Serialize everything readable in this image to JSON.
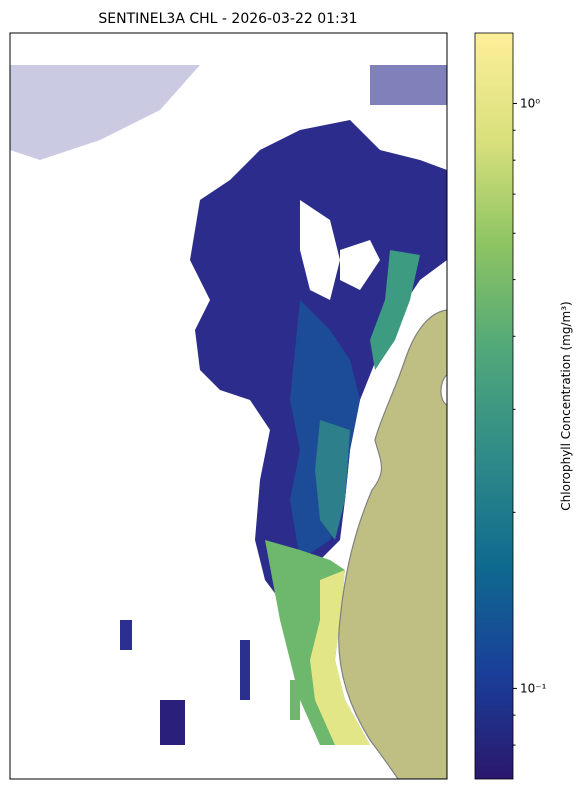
{
  "chart_data": {
    "type": "map",
    "title": "SENTINEL3A CHL - 2026-03-22 01:31",
    "colorbar": {
      "label": "Chlorophyll Concentration (mg/m³)",
      "scale": "log",
      "lim": [
        0.07,
        1.32
      ],
      "ticks": [
        {
          "value": 1,
          "label": "10⁰"
        },
        {
          "value": 0.1,
          "label": "10⁻¹"
        }
      ],
      "minor_ticks": [
        0.08,
        0.09,
        0.2,
        0.3,
        0.4,
        0.5,
        0.6,
        0.7,
        0.8,
        0.9
      ],
      "colormap": [
        "#2a186c",
        "#1a3f9a",
        "#0f6a8f",
        "#2e8a88",
        "#4fa77a",
        "#8cc462",
        "#d9e07c",
        "#fdef9a"
      ]
    }
  }
}
